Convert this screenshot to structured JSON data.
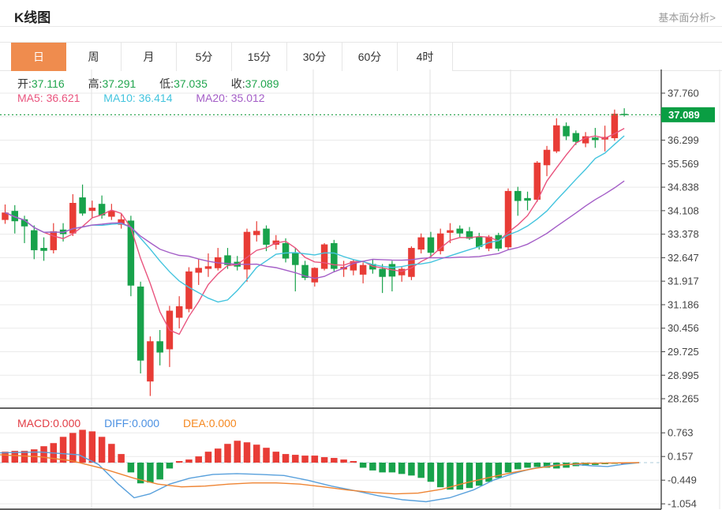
{
  "header": {
    "title": "K线图",
    "link": "基本面分析>"
  },
  "tabs": {
    "items": [
      {
        "key": "day",
        "label": "日",
        "active": true
      },
      {
        "key": "week",
        "label": "周",
        "active": false
      },
      {
        "key": "month",
        "label": "月",
        "active": false
      },
      {
        "key": "5min",
        "label": "5分",
        "active": false
      },
      {
        "key": "15min",
        "label": "15分",
        "active": false
      },
      {
        "key": "30min",
        "label": "30分",
        "active": false
      },
      {
        "key": "60min",
        "label": "60分",
        "active": false
      },
      {
        "key": "4hour",
        "label": "4时",
        "active": false
      }
    ]
  },
  "kline_legend": {
    "open_label": "开:",
    "open": "37.116",
    "high_label": "高:",
    "high": "37.291",
    "low_label": "低:",
    "low": "37.035",
    "close_label": "收:",
    "close": "37.089",
    "ma5_label": "MA5:",
    "ma5": "36.621",
    "ma10_label": "MA10:",
    "ma10": "36.414",
    "ma20_label": "MA20:",
    "ma20": "35.012"
  },
  "macd_legend": {
    "macd_label": "MACD:",
    "macd": "0.000",
    "diff_label": "DIFF:",
    "diff": "0.000",
    "dea_label": "DEA:",
    "dea": "0.000"
  },
  "colors": {
    "up": "#e83c36",
    "down": "#18a24b",
    "ma5": "#e9547e",
    "ma10": "#43c4de",
    "ma20": "#a45ec7",
    "diff_line": "#58a0dc",
    "dea_line": "#ee8433",
    "grid": "#eaeaea",
    "vgrid": "#e2e2e2",
    "axis_line": "#333333",
    "axis_text": "#444444",
    "separator": "#2f2f2f",
    "price_badge_bg": "#0a9e43",
    "price_badge_text": "#ffffff",
    "current_price_line": "#33a855",
    "macd_zero_dash": "#aecddb",
    "tab_active_bg": "#ef8c4e"
  },
  "chart_data": {
    "type": "candlestick+macd",
    "title": "K线图",
    "legend_position": "top-left",
    "grid": true,
    "price_axis": {
      "current_price": {
        "label": "37.089",
        "price": 37.089
      },
      "ticks": [
        {
          "label": "37.760",
          "price": 37.76
        },
        {
          "label": "",
          "price": 37.03
        },
        {
          "label": "36.299",
          "price": 36.299
        },
        {
          "label": "35.569",
          "price": 35.569
        },
        {
          "label": "34.838",
          "price": 34.838
        },
        {
          "label": "34.108",
          "price": 34.108
        },
        {
          "label": "33.378",
          "price": 33.378
        },
        {
          "label": "32.647",
          "price": 32.647
        },
        {
          "label": "31.917",
          "price": 31.917
        },
        {
          "label": "31.186",
          "price": 31.186
        },
        {
          "label": "30.456",
          "price": 30.456
        },
        {
          "label": "29.725",
          "price": 29.725
        },
        {
          "label": "28.995",
          "price": 28.995
        },
        {
          "label": "28.265",
          "price": 28.265
        }
      ]
    },
    "macd_axis": {
      "ticks": [
        {
          "label": "0.763",
          "v": 0.763
        },
        {
          "label": "0.157",
          "v": 0.157
        },
        {
          "label": "-0.449",
          "v": -0.449
        },
        {
          "label": "-1.054",
          "v": -1.054
        }
      ]
    },
    "vgrid_x": [
      116,
      397,
      545,
      647
    ],
    "ma_periods": [
      5,
      10,
      20
    ],
    "candles": [
      [
        33.82,
        34.3,
        33.7,
        34.05
      ],
      [
        34.1,
        34.28,
        33.4,
        33.78
      ],
      [
        33.84,
        33.95,
        33.1,
        33.62
      ],
      [
        33.5,
        33.65,
        32.6,
        32.88
      ],
      [
        32.95,
        33.28,
        32.55,
        32.86
      ],
      [
        32.88,
        33.72,
        32.78,
        33.47
      ],
      [
        33.52,
        33.72,
        33.15,
        33.38
      ],
      [
        33.4,
        34.62,
        33.32,
        34.35
      ],
      [
        34.52,
        34.92,
        33.95,
        34.02
      ],
      [
        34.1,
        34.42,
        33.88,
        34.2
      ],
      [
        34.32,
        34.58,
        33.86,
        33.96
      ],
      [
        33.92,
        34.32,
        33.82,
        34.1
      ],
      [
        33.67,
        34.0,
        33.55,
        33.84
      ],
      [
        33.8,
        33.95,
        31.45,
        31.78
      ],
      [
        31.75,
        31.9,
        29.05,
        29.45
      ],
      [
        28.8,
        30.2,
        28.35,
        30.05
      ],
      [
        30.05,
        30.4,
        29.3,
        29.7
      ],
      [
        29.8,
        31.15,
        29.25,
        31.0
      ],
      [
        30.78,
        31.45,
        30.45,
        31.14
      ],
      [
        31.05,
        32.35,
        30.95,
        32.22
      ],
      [
        32.18,
        32.6,
        31.8,
        32.33
      ],
      [
        32.3,
        32.78,
        32.05,
        32.38
      ],
      [
        32.32,
        32.95,
        32.25,
        32.66
      ],
      [
        32.72,
        32.95,
        32.3,
        32.42
      ],
      [
        32.52,
        32.7,
        32.25,
        32.37
      ],
      [
        32.28,
        33.55,
        31.9,
        33.45
      ],
      [
        33.35,
        33.78,
        33.15,
        33.48
      ],
      [
        33.55,
        33.65,
        32.85,
        33.05
      ],
      [
        33.05,
        33.35,
        32.9,
        33.18
      ],
      [
        33.1,
        33.25,
        32.5,
        32.62
      ],
      [
        32.8,
        32.95,
        31.6,
        32.42
      ],
      [
        32.42,
        32.55,
        31.95,
        32.02
      ],
      [
        31.88,
        32.35,
        31.75,
        32.33
      ],
      [
        32.3,
        33.1,
        32.25,
        33.06
      ],
      [
        33.1,
        33.2,
        32.2,
        32.3
      ],
      [
        32.28,
        32.55,
        32.05,
        32.36
      ],
      [
        32.25,
        32.6,
        32.1,
        32.54
      ],
      [
        32.12,
        32.5,
        31.85,
        32.42
      ],
      [
        32.45,
        32.6,
        32.15,
        32.28
      ],
      [
        32.3,
        32.45,
        31.55,
        32.05
      ],
      [
        32.45,
        32.55,
        31.6,
        32.06
      ],
      [
        32.1,
        32.38,
        31.9,
        32.3
      ],
      [
        32.05,
        33.0,
        31.95,
        32.95
      ],
      [
        32.9,
        33.4,
        32.78,
        33.28
      ],
      [
        33.28,
        33.45,
        32.65,
        32.8
      ],
      [
        32.85,
        33.55,
        32.75,
        33.4
      ],
      [
        33.42,
        33.72,
        33.1,
        33.5
      ],
      [
        33.55,
        33.65,
        33.28,
        33.4
      ],
      [
        33.47,
        33.6,
        33.2,
        33.24
      ],
      [
        33.3,
        33.42,
        32.9,
        32.98
      ],
      [
        32.93,
        33.35,
        32.85,
        33.3
      ],
      [
        33.35,
        33.42,
        32.85,
        32.93
      ],
      [
        32.97,
        34.8,
        32.9,
        34.72
      ],
      [
        34.72,
        34.85,
        33.95,
        34.41
      ],
      [
        34.5,
        34.7,
        34.12,
        34.42
      ],
      [
        34.45,
        35.65,
        34.38,
        35.6
      ],
      [
        35.52,
        36.12,
        35.18,
        36.0
      ],
      [
        35.95,
        36.98,
        35.9,
        36.76
      ],
      [
        36.74,
        36.85,
        36.3,
        36.42
      ],
      [
        36.52,
        36.6,
        36.15,
        36.25
      ],
      [
        36.2,
        36.55,
        36.08,
        36.42
      ],
      [
        36.38,
        36.68,
        36.06,
        36.3
      ],
      [
        36.32,
        36.75,
        35.95,
        36.4
      ],
      [
        36.36,
        37.25,
        36.28,
        37.12
      ],
      [
        37.116,
        37.291,
        37.035,
        37.089
      ]
    ],
    "macd_hist": [
      0.28,
      0.3,
      0.3,
      0.34,
      0.42,
      0.5,
      0.66,
      0.76,
      0.84,
      0.8,
      0.66,
      0.48,
      0.22,
      -0.25,
      -0.53,
      -0.51,
      -0.43,
      -0.15,
      0.04,
      0.08,
      0.16,
      0.28,
      0.36,
      0.48,
      0.56,
      0.52,
      0.46,
      0.38,
      0.28,
      0.22,
      0.2,
      0.18,
      0.18,
      0.14,
      0.12,
      0.08,
      0.04,
      -0.13,
      -0.2,
      -0.25,
      -0.25,
      -0.29,
      -0.33,
      -0.39,
      -0.49,
      -0.63,
      -0.69,
      -0.69,
      -0.65,
      -0.59,
      -0.49,
      -0.39,
      -0.25,
      -0.17,
      -0.13,
      -0.11,
      -0.13,
      -0.15,
      -0.13,
      -0.09,
      -0.08,
      -0.06,
      -0.04,
      -0.03,
      0.0
    ],
    "diff_line": [
      [
        0,
        0.25
      ],
      [
        50,
        0.27
      ],
      [
        100,
        0.2
      ],
      [
        125,
        -0.05
      ],
      [
        150,
        -0.55
      ],
      [
        170,
        -0.9
      ],
      [
        190,
        -0.8
      ],
      [
        215,
        -0.55
      ],
      [
        240,
        -0.4
      ],
      [
        270,
        -0.3
      ],
      [
        300,
        -0.28
      ],
      [
        330,
        -0.3
      ],
      [
        360,
        -0.33
      ],
      [
        390,
        -0.45
      ],
      [
        420,
        -0.6
      ],
      [
        450,
        -0.72
      ],
      [
        480,
        -0.85
      ],
      [
        510,
        -0.95
      ],
      [
        540,
        -1.0
      ],
      [
        570,
        -0.9
      ],
      [
        600,
        -0.7
      ],
      [
        625,
        -0.45
      ],
      [
        650,
        -0.28
      ],
      [
        675,
        -0.15
      ],
      [
        700,
        -0.07
      ],
      [
        725,
        -0.04
      ],
      [
        750,
        -0.08
      ],
      [
        770,
        -0.1
      ],
      [
        790,
        -0.04
      ],
      [
        810,
        0.0
      ]
    ],
    "dea_line": [
      [
        0,
        0.2
      ],
      [
        50,
        0.15
      ],
      [
        90,
        0.05
      ],
      [
        130,
        -0.15
      ],
      [
        170,
        -0.4
      ],
      [
        200,
        -0.55
      ],
      [
        230,
        -0.62
      ],
      [
        260,
        -0.6
      ],
      [
        290,
        -0.55
      ],
      [
        320,
        -0.52
      ],
      [
        350,
        -0.52
      ],
      [
        380,
        -0.55
      ],
      [
        410,
        -0.62
      ],
      [
        440,
        -0.7
      ],
      [
        470,
        -0.76
      ],
      [
        500,
        -0.8
      ],
      [
        530,
        -0.78
      ],
      [
        560,
        -0.68
      ],
      [
        590,
        -0.52
      ],
      [
        620,
        -0.38
      ],
      [
        650,
        -0.25
      ],
      [
        680,
        -0.14
      ],
      [
        710,
        -0.06
      ],
      [
        740,
        -0.02
      ],
      [
        770,
        -0.01
      ],
      [
        810,
        0.0
      ]
    ]
  }
}
